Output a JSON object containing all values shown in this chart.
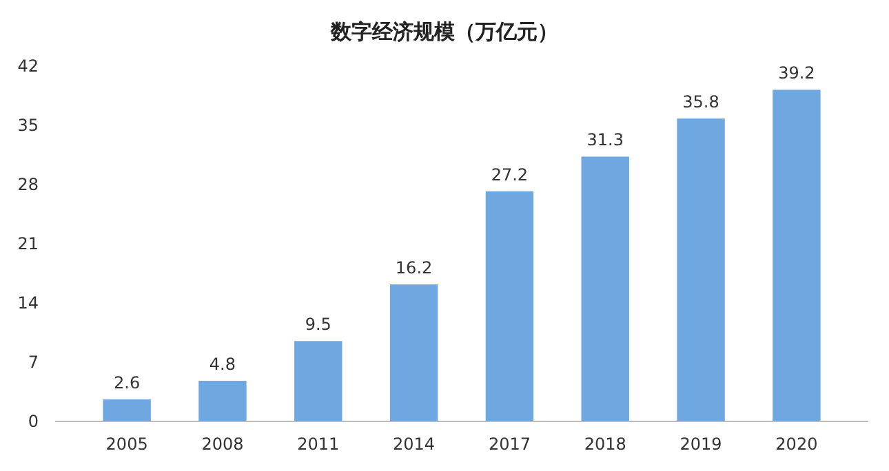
{
  "chart_data": {
    "type": "bar",
    "title": "数字经济规模（万亿元）",
    "categories": [
      "2005",
      "2008",
      "2011",
      "2014",
      "2017",
      "2018",
      "2019",
      "2020"
    ],
    "values": [
      2.6,
      4.8,
      9.5,
      16.2,
      27.2,
      31.3,
      35.8,
      39.2
    ],
    "color": "#6fa8e0",
    "ylim": [
      0,
      42
    ],
    "yticks": [
      0,
      7,
      14,
      21,
      28,
      35,
      42
    ],
    "data_labels": true,
    "grid": false
  }
}
